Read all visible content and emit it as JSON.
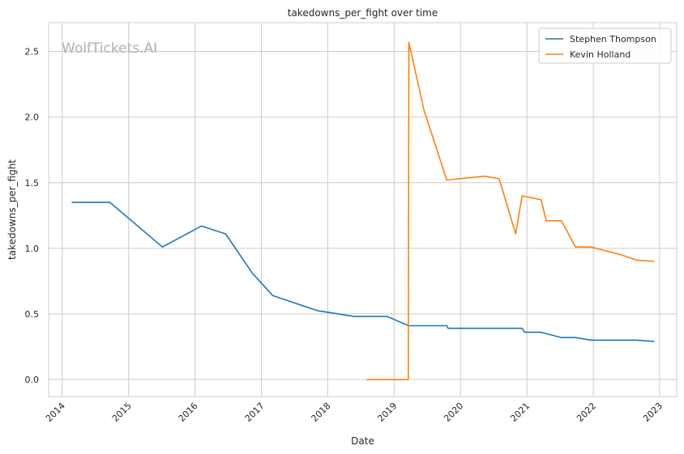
{
  "chart_data": {
    "type": "line",
    "title": "takedowns_per_fight over time",
    "xlabel": "Date",
    "ylabel": "takedowns_per_fight",
    "watermark": "WolfTickets.AI",
    "xlim": [
      "2013-10-18",
      "2023-04-05"
    ],
    "ylim": [
      -0.13,
      2.72
    ],
    "x_ticks": [
      "2014",
      "2015",
      "2016",
      "2017",
      "2018",
      "2019",
      "2020",
      "2021",
      "2022",
      "2023"
    ],
    "y_ticks": [
      "0.0",
      "0.5",
      "1.0",
      "1.5",
      "2.0",
      "2.5"
    ],
    "grid": true,
    "legend_position": "top-right",
    "series": [
      {
        "name": "Stephen Thompson",
        "color": "#1f77b4",
        "x": [
          "2014-02-22",
          "2014-09-20",
          "2015-07-06",
          "2016-02-06",
          "2016-06-18",
          "2016-11-12",
          "2017-03-04",
          "2017-11-04",
          "2018-05-27",
          "2018-11-24",
          "2019-03-23",
          "2019-10-18",
          "2019-10-25",
          "2020-12-05",
          "2020-12-19",
          "2021-03-20",
          "2021-07-10",
          "2021-09-25",
          "2021-12-18",
          "2022-08-27",
          "2022-12-03"
        ],
        "y": [
          1.35,
          1.35,
          1.01,
          1.17,
          1.11,
          0.81,
          0.64,
          0.525,
          0.48,
          0.48,
          0.41,
          0.41,
          0.39,
          0.39,
          0.36,
          0.36,
          0.32,
          0.32,
          0.3,
          0.3,
          0.29
        ]
      },
      {
        "name": "Kevin Holland",
        "color": "#ff7f0e",
        "x": [
          "2018-08-04",
          "2019-03-20",
          "2019-03-23",
          "2019-06-15",
          "2019-10-18",
          "2020-05-13",
          "2020-08-01",
          "2020-10-31",
          "2020-12-05",
          "2021-03-20",
          "2021-04-17",
          "2021-07-10",
          "2021-09-25",
          "2021-12-18",
          "2022-06-04",
          "2022-08-27",
          "2022-12-03"
        ],
        "y": [
          0.0,
          0.0,
          2.57,
          2.05,
          1.52,
          1.55,
          1.53,
          1.11,
          1.4,
          1.37,
          1.21,
          1.21,
          1.01,
          1.01,
          0.95,
          0.91,
          0.9
        ]
      }
    ]
  }
}
